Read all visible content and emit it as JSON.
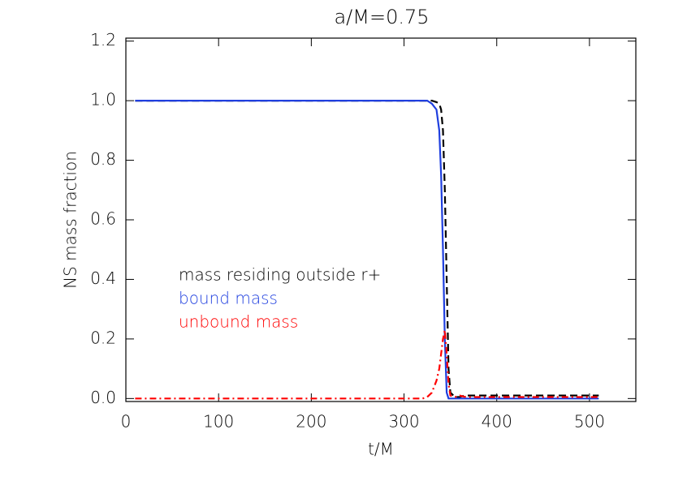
{
  "chart_data": {
    "type": "line",
    "title": "a/M=0.75",
    "x_label": "t/M",
    "y_label": "NS mass fraction",
    "x": [
      10,
      50,
      100,
      200,
      300,
      320,
      325,
      330,
      335,
      338,
      340,
      342,
      344,
      346,
      348,
      350,
      355,
      360,
      365,
      370,
      400,
      450,
      510
    ],
    "series": [
      {
        "name": "mass residing outside r+",
        "color": "#000000",
        "dash": "dashed",
        "values": [
          1,
          1,
          1,
          1,
          1,
          1,
          1,
          1,
          0.995,
          0.99,
          0.97,
          0.9,
          0.7,
          0.4,
          0.1,
          0.02,
          0.005,
          0.005,
          0.01,
          0.01,
          0.01,
          0.01,
          0.01
        ]
      },
      {
        "name": "bound mass",
        "color": "#1f3fdf",
        "dash": "solid",
        "values": [
          1,
          1,
          1,
          1,
          1,
          1,
          1,
          0.99,
          0.97,
          0.9,
          0.75,
          0.5,
          0.2,
          0.02,
          0,
          0,
          0,
          0,
          0,
          0,
          0,
          0,
          0
        ]
      },
      {
        "name": "unbound mass",
        "color": "#ff0000",
        "dash": "dashdot",
        "values": [
          0,
          0,
          0,
          0,
          0,
          0,
          0.005,
          0.02,
          0.06,
          0.1,
          0.15,
          0.2,
          0.23,
          0.15,
          0.05,
          0.01,
          0.005,
          0.01,
          0.006,
          0.005,
          0.005,
          0.005,
          0.005
        ]
      }
    ],
    "xlim": [
      0,
      550
    ],
    "xticks": [
      0,
      100,
      200,
      300,
      400,
      500
    ],
    "ylim": [
      -0.01,
      1.21
    ],
    "yticks": [
      {
        "value": 0,
        "label": "0.0"
      },
      {
        "value": 0.2,
        "label": "0.2"
      },
      {
        "value": 0.4,
        "label": "0.4"
      },
      {
        "value": 0.6,
        "label": "0.6"
      },
      {
        "value": 0.8,
        "label": "0.8"
      },
      {
        "value": 1,
        "label": "1.0"
      },
      {
        "value": 1.2,
        "label": "1.2"
      }
    ]
  }
}
